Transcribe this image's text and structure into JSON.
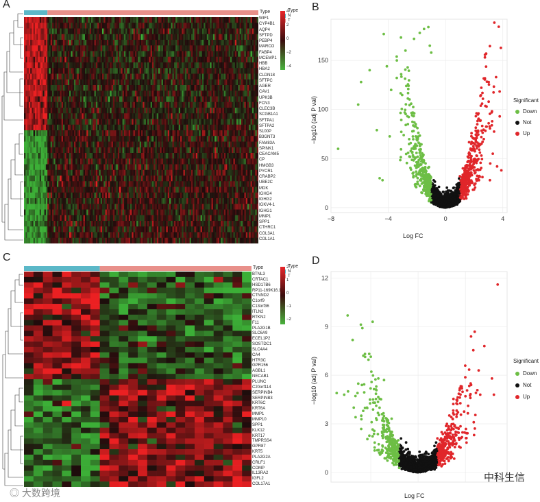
{
  "panels": {
    "a": "A",
    "b": "B",
    "c": "C",
    "d": "D"
  },
  "watermark_left": "大数跨境",
  "watermark_right": "中科生信",
  "heatmap_a": {
    "type_label": "Type",
    "legend_title": "Type",
    "legend_N": "N",
    "legend_T": "T",
    "scale_ticks": [
      "4",
      "2",
      "0",
      "−2",
      "−4"
    ],
    "genes": [
      "WIF1",
      "CYP4B1",
      "AQP4",
      "SFTPD",
      "PEBP4",
      "MARCO",
      "FABP4",
      "MCEMP1",
      "HBB",
      "HBA2",
      "CLDN18",
      "SFTPC",
      "AGER",
      "CAV1",
      "UPK3B",
      "FCN3",
      "CLEC3B",
      "SCGB1A1",
      "SFTPA1",
      "SFTPA2",
      "S100P",
      "B3GNT3",
      "FAM83A",
      "SPINK1",
      "CEACAM5",
      "CP",
      "HMGB3",
      "PYCR1",
      "CRABP2",
      "UBE2C",
      "MDK",
      "IGHG4",
      "IGHG2",
      "IGKV4-1",
      "IGHG1",
      "MMP1",
      "SPP1",
      "CTHRC1",
      "COL3A1",
      "COL1A1"
    ],
    "colors": {
      "N": "#5bb8c8",
      "T": "#e8908a",
      "high": "#e8262a",
      "mid": "#1a0d0d",
      "low": "#49b33d"
    }
  },
  "heatmap_c": {
    "type_label": "Type",
    "legend_title": "Type",
    "legend_N": "N",
    "legend_T": "T",
    "scale_ticks": [
      "2",
      "1",
      "0",
      "−1",
      "−2"
    ],
    "genes": [
      "BTNL3",
      "CRTAC1",
      "HSD17B6",
      "RP11-169K16.1",
      "CTNND2",
      "C1orf9",
      "C13orf36",
      "ITLN2",
      "RTKN2",
      "F11",
      "PLA2G1B",
      "SLC6A9",
      "ECEL1P2",
      "SOSTDC1",
      "SLC4A4",
      "CA4",
      "HTR3C",
      "GPR156",
      "AGBL1",
      "NECAB1",
      "PLUNC",
      "C20orf114",
      "SERPINB4",
      "SERPINB3",
      "KRT6C",
      "KRT6A",
      "MMP1",
      "MMP10",
      "SPP1",
      "KLK12",
      "KRT17",
      "TMPRSS4",
      "GPR87",
      "KRT5",
      "PLA2G2A",
      "CRLF1",
      "COMP",
      "IL13RA2",
      "IGFL2",
      "COL17A1"
    ]
  },
  "chart_data": [
    {
      "type": "scatter",
      "title": "B",
      "xlabel": "Log FC",
      "ylabel": "−log10 (adj P val)",
      "xlim": [
        -8,
        4.3
      ],
      "ylim": [
        -5,
        192
      ],
      "xticks": [
        "−8",
        "−4",
        "0",
        "4"
      ],
      "xtick_values": [
        -8,
        -4,
        0,
        4
      ],
      "yticks": [
        "0",
        "50",
        "100",
        "150"
      ],
      "ytick_values": [
        0,
        50,
        100,
        150
      ],
      "legend_title": "Significant",
      "series": [
        {
          "name": "Down",
          "color": "#6dbe45"
        },
        {
          "name": "Not",
          "color": "#111111"
        },
        {
          "name": "Up",
          "color": "#e0262a"
        }
      ],
      "highlighted_points": {
        "down": [
          [
            -7.5,
            60
          ],
          [
            -6.1,
            105
          ],
          [
            -5.9,
            128
          ],
          [
            -5.3,
            140
          ],
          [
            -4.8,
            79
          ],
          [
            -4.6,
            30
          ],
          [
            -4.4,
            28
          ],
          [
            -4.1,
            144
          ],
          [
            -3.8,
            120
          ],
          [
            -3.4,
            150
          ],
          [
            -3.1,
            136
          ],
          [
            -2.8,
            160
          ],
          [
            -2.2,
            172
          ],
          [
            -1.8,
            178
          ],
          [
            -1.2,
            184
          ],
          [
            -1.5,
            182
          ],
          [
            -1.1,
            165
          ],
          [
            -1.0,
            158
          ]
        ],
        "up": [
          [
            2.5,
            72
          ],
          [
            3.3,
            55
          ],
          [
            3.6,
            42
          ],
          [
            3.9,
            38
          ],
          [
            3.1,
            28
          ]
        ]
      }
    },
    {
      "type": "scatter",
      "title": "D",
      "xlabel": "Log FC",
      "ylabel": "−log10 (adj P val)",
      "xlim": [
        -4.6,
        4.7
      ],
      "ylim": [
        -0.6,
        12.4
      ],
      "xticks": [
        "−2.5",
        "0.0",
        "2.5"
      ],
      "xtick_values": [
        -2.5,
        0,
        2.5
      ],
      "yticks": [
        "0",
        "3",
        "6",
        "9",
        "12"
      ],
      "ytick_values": [
        0,
        3,
        6,
        9,
        12
      ],
      "legend_title": "Significant",
      "series": [
        {
          "name": "Down",
          "color": "#6dbe45"
        },
        {
          "name": "Not",
          "color": "#111111"
        },
        {
          "name": "Up",
          "color": "#e0262a"
        }
      ],
      "highlighted_points": {
        "down": [
          [
            -2.4,
            9.3
          ],
          [
            -4.3,
            4.9
          ],
          [
            -3.9,
            4.8
          ],
          [
            -3.7,
            5.0
          ],
          [
            -3.2,
            4.9
          ],
          [
            -3.4,
            4.0
          ],
          [
            -2.9,
            3.8
          ],
          [
            -2.7,
            4.0
          ],
          [
            -3.0,
            3.5
          ],
          [
            -2.1,
            5.8
          ],
          [
            -1.8,
            5.7
          ]
        ],
        "up": [
          [
            4.2,
            11.6
          ],
          [
            3.5,
            7.8
          ],
          [
            3.9,
            5.8
          ],
          [
            4.0,
            4.8
          ],
          [
            3.2,
            6.3
          ],
          [
            2.5,
            4.7
          ],
          [
            2.8,
            5.4
          ]
        ]
      }
    }
  ]
}
